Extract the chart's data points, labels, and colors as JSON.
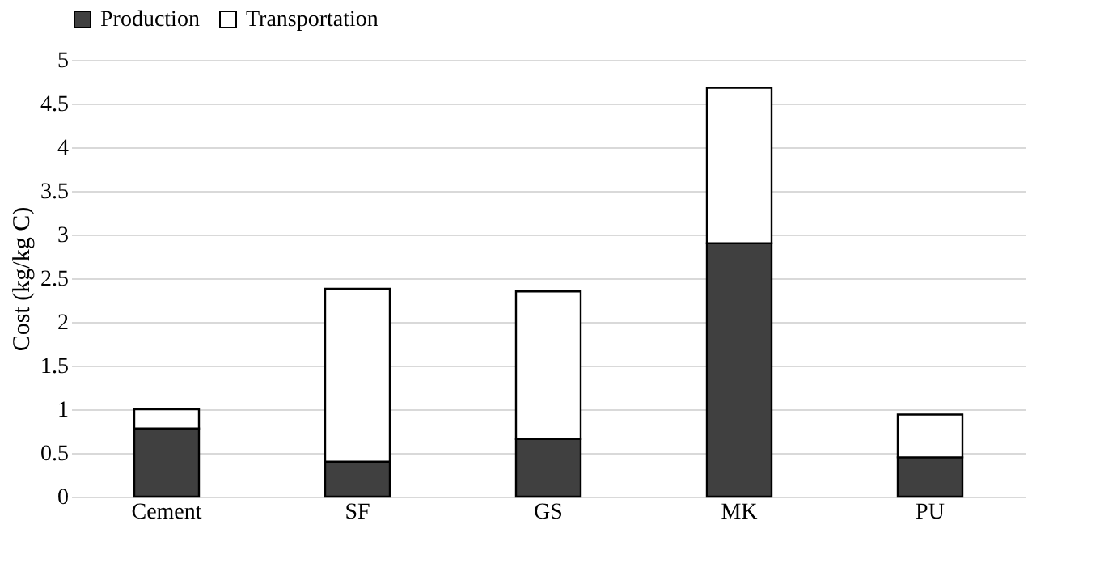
{
  "chart_data": {
    "type": "bar",
    "stacked": true,
    "ylabel": "Cost (kg/kg C)",
    "categories": [
      "Cement",
      "SF",
      "GS",
      "MK",
      "PU"
    ],
    "series": [
      {
        "name": "Production",
        "color": "#404040",
        "values": [
          0.78,
          0.4,
          0.66,
          2.9,
          0.45
        ]
      },
      {
        "name": "Transportation",
        "color": "#ffffff",
        "values": [
          0.22,
          1.98,
          1.69,
          1.78,
          0.49
        ]
      }
    ],
    "ylim": [
      0,
      5
    ],
    "yticks": [
      0,
      0.5,
      1,
      1.5,
      2,
      2.5,
      3,
      3.5,
      4,
      4.5,
      5
    ],
    "grid": "y",
    "legend": "top"
  }
}
